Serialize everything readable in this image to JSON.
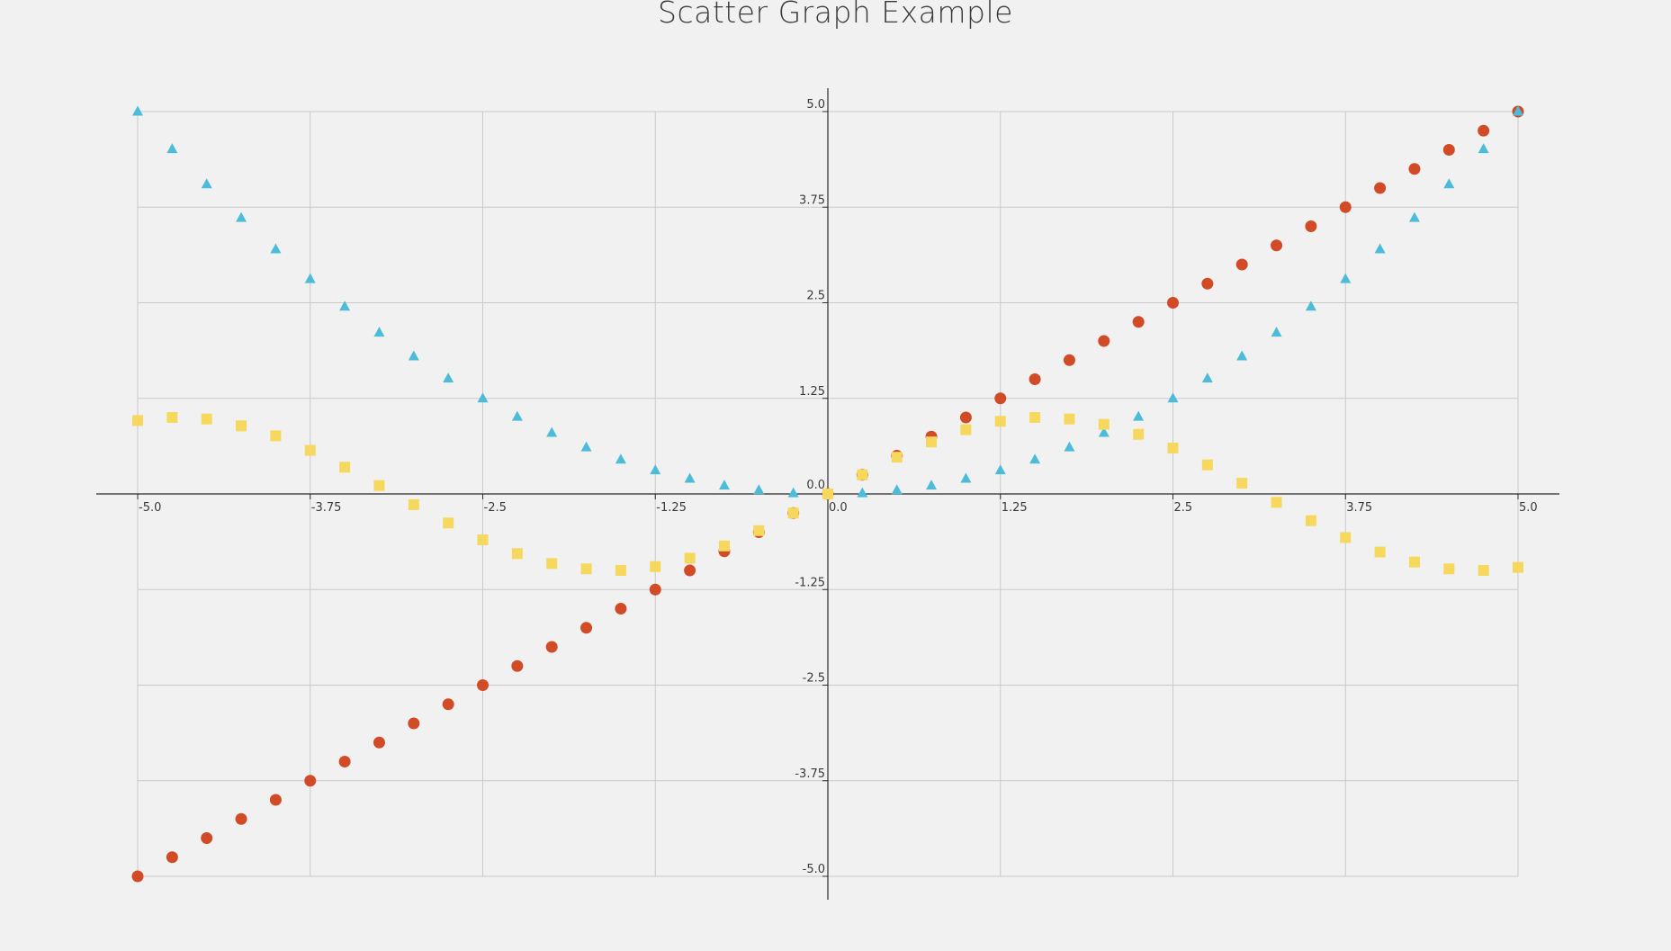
{
  "chart_data": {
    "type": "scatter",
    "title": "Scatter Graph Example",
    "xlabel": "",
    "ylabel": "",
    "xlim": [
      -5.0,
      5.0
    ],
    "ylim": [
      -5.0,
      5.0
    ],
    "grid": true,
    "legend": "none",
    "x_ticks": [
      "-5.0",
      "-3.75",
      "-2.5",
      "-1.25",
      "0.0",
      "1.25",
      "2.5",
      "3.75",
      "5.0"
    ],
    "y_ticks": [
      "5.0",
      "3.75",
      "2.5",
      "1.25",
      "0.0",
      "-1.25",
      "-2.5",
      "-3.75",
      "-5.0"
    ],
    "x_tick_values": [
      -5.0,
      -3.75,
      -2.5,
      -1.25,
      0.0,
      1.25,
      2.5,
      3.75,
      5.0
    ],
    "y_tick_values": [
      5.0,
      3.75,
      2.5,
      1.25,
      0.0,
      -1.25,
      -2.5,
      -3.75,
      -5.0
    ],
    "x": [
      -5.0,
      -4.75,
      -4.5,
      -4.25,
      -4.0,
      -3.75,
      -3.5,
      -3.25,
      -3.0,
      -2.75,
      -2.5,
      -2.25,
      -2.0,
      -1.75,
      -1.5,
      -1.25,
      -1.0,
      -0.75,
      -0.5,
      -0.25,
      0.0,
      0.25,
      0.5,
      0.75,
      1.0,
      1.25,
      1.5,
      1.75,
      2.0,
      2.25,
      2.5,
      2.75,
      3.0,
      3.25,
      3.5,
      3.75,
      4.0,
      4.25,
      4.5,
      4.75,
      5.0
    ],
    "series": [
      {
        "marker": "circle",
        "color": "#d14b27",
        "values": [
          -5.0,
          -4.75,
          -4.5,
          -4.25,
          -4.0,
          -3.75,
          -3.5,
          -3.25,
          -3.0,
          -2.75,
          -2.5,
          -2.25,
          -2.0,
          -1.75,
          -1.5,
          -1.25,
          -1.0,
          -0.75,
          -0.5,
          -0.25,
          0.0,
          0.25,
          0.5,
          0.75,
          1.0,
          1.25,
          1.5,
          1.75,
          2.0,
          2.25,
          2.5,
          2.75,
          3.0,
          3.25,
          3.5,
          3.75,
          4.0,
          4.25,
          4.5,
          4.75,
          5.0
        ]
      },
      {
        "marker": "triangle",
        "color": "#4dbcd9",
        "values": [
          5.0,
          4.51,
          4.05,
          3.61,
          3.2,
          2.81,
          2.45,
          2.11,
          1.8,
          1.51,
          1.25,
          1.01,
          0.8,
          0.61,
          0.45,
          0.31,
          0.2,
          0.11,
          0.05,
          0.01,
          0.0,
          0.01,
          0.05,
          0.11,
          0.2,
          0.31,
          0.45,
          0.61,
          0.8,
          1.01,
          1.25,
          1.51,
          1.8,
          2.11,
          2.45,
          2.81,
          3.2,
          3.61,
          4.05,
          4.51,
          5.0
        ]
      },
      {
        "marker": "square",
        "color": "#f6d85e",
        "values": [
          0.96,
          1.0,
          0.98,
          0.89,
          0.76,
          0.57,
          0.35,
          0.11,
          -0.14,
          -0.38,
          -0.6,
          -0.78,
          -0.91,
          -0.98,
          -1.0,
          -0.95,
          -0.84,
          -0.68,
          -0.48,
          -0.25,
          0.0,
          0.25,
          0.48,
          0.68,
          0.84,
          0.95,
          1.0,
          0.98,
          0.91,
          0.78,
          0.6,
          0.38,
          0.14,
          -0.11,
          -0.35,
          -0.57,
          -0.76,
          -0.89,
          -0.98,
          -1.0,
          -0.96
        ]
      }
    ]
  }
}
